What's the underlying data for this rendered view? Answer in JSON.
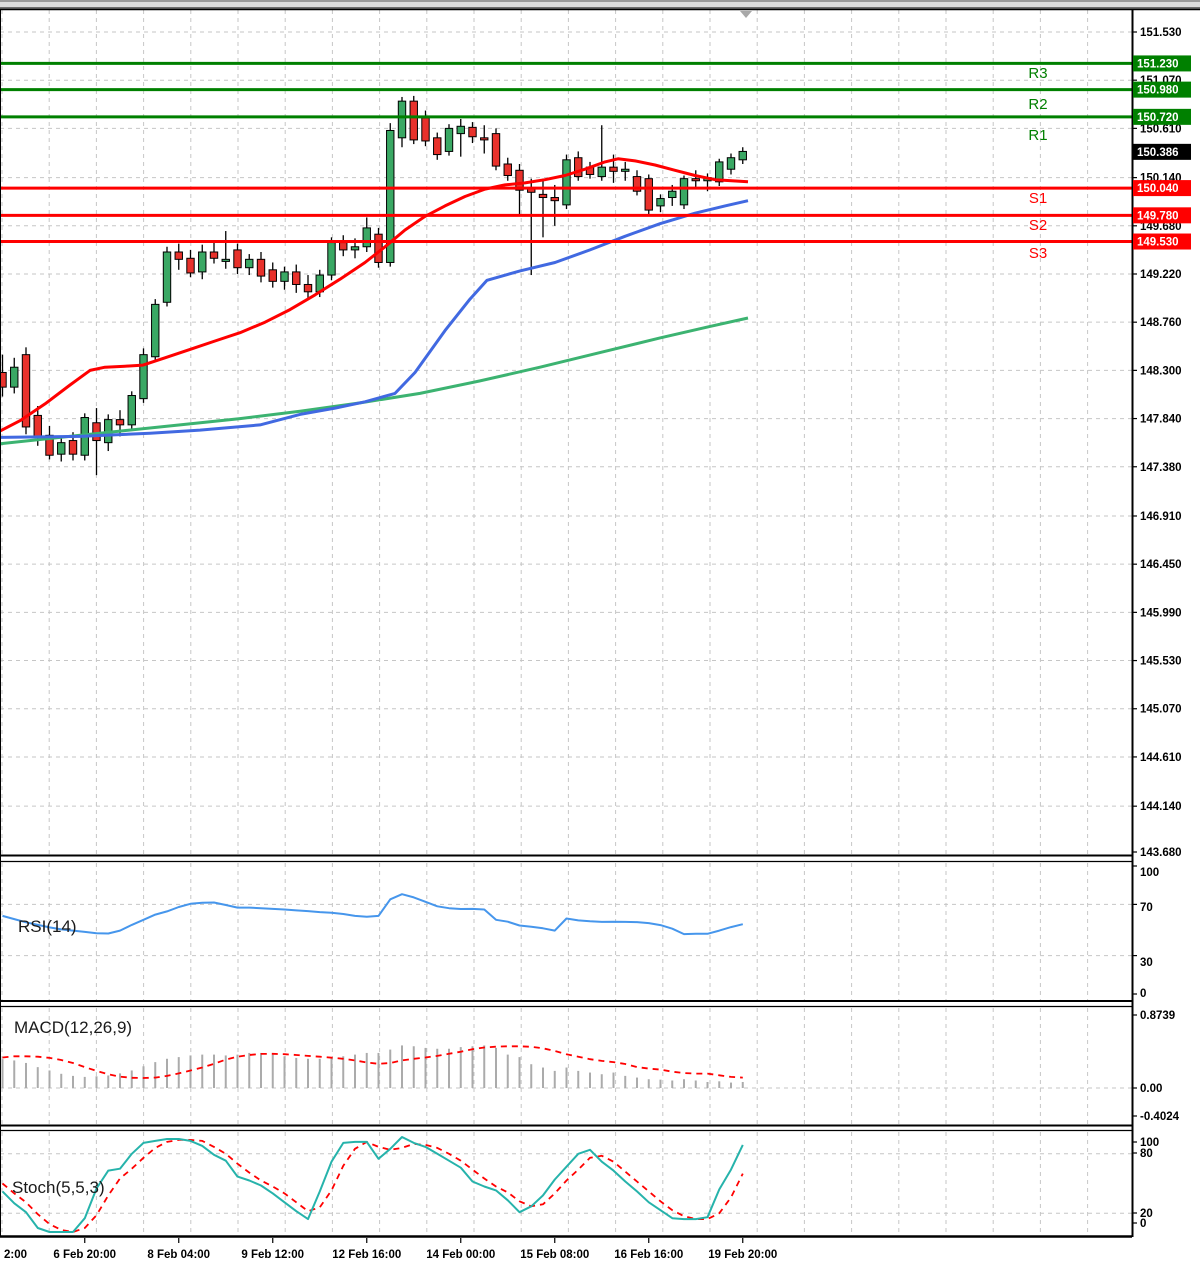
{
  "colors": {
    "grid": "#c6c6c6",
    "pivot_green": "#008000",
    "pivot_red": "#ff0000",
    "ma_red": "#ff0000",
    "ma_blue": "#4169e1",
    "ma_green": "#3cb371",
    "candle_up": "#3aa864",
    "candle_down": "#e8312b",
    "candle_outline": "#000000",
    "rsi_line": "#4696ec",
    "macd_hist": "#ababab",
    "macd_signal": "#ff0000",
    "stoch_k": "#26b3ab",
    "stoch_d": "#ff0000",
    "axis_text": "#000000",
    "current_price_bg": "#000000"
  },
  "chart_data": {
    "type": "candlestick",
    "main": {
      "price_axis_labels": [
        "151.530",
        "151.070",
        "150.610",
        "150.140",
        "149.680",
        "149.220",
        "148.760",
        "148.300",
        "147.840",
        "147.380",
        "146.910",
        "146.450",
        "145.990",
        "145.530",
        "145.070",
        "144.610",
        "144.140",
        "143.680"
      ],
      "price_axis_values": [
        151.53,
        151.07,
        150.61,
        150.14,
        149.68,
        149.22,
        148.76,
        148.3,
        147.84,
        147.38,
        146.91,
        146.45,
        145.99,
        145.53,
        145.07,
        144.61,
        144.14,
        143.68
      ],
      "pivots": [
        {
          "name": "R3",
          "price": 151.23,
          "label": "151.230",
          "kind": "green"
        },
        {
          "name": "R2",
          "price": 150.98,
          "label": "150.980",
          "kind": "green"
        },
        {
          "name": "R1",
          "price": 150.72,
          "label": "150.720",
          "kind": "green"
        },
        {
          "name": "S1",
          "price": 150.04,
          "label": "150.040",
          "kind": "red"
        },
        {
          "name": "S2",
          "price": 149.78,
          "label": "149.780",
          "kind": "red"
        },
        {
          "name": "S3",
          "price": 149.53,
          "label": "149.530",
          "kind": "red"
        }
      ],
      "current_price": 150.386,
      "current_price_label": "150.386",
      "candles": [
        [
          148.28,
          148.45,
          148.05,
          148.14
        ],
        [
          148.14,
          148.42,
          148.08,
          148.33
        ],
        [
          148.45,
          148.52,
          147.69,
          147.76
        ],
        [
          147.87,
          147.96,
          147.58,
          147.66
        ],
        [
          147.68,
          147.77,
          147.45,
          147.49
        ],
        [
          147.5,
          147.67,
          147.43,
          147.61
        ],
        [
          147.63,
          147.71,
          147.44,
          147.5
        ],
        [
          147.49,
          147.89,
          147.44,
          147.85
        ],
        [
          147.8,
          147.94,
          147.3,
          147.63
        ],
        [
          147.61,
          147.88,
          147.53,
          147.83
        ],
        [
          147.83,
          147.92,
          147.67,
          147.78
        ],
        [
          147.78,
          148.1,
          147.74,
          148.06
        ],
        [
          148.03,
          148.51,
          147.99,
          148.45
        ],
        [
          148.43,
          148.98,
          148.39,
          148.93
        ],
        [
          148.95,
          149.48,
          148.91,
          149.43
        ],
        [
          149.43,
          149.51,
          149.26,
          149.36
        ],
        [
          149.37,
          149.45,
          149.19,
          149.23
        ],
        [
          149.24,
          149.5,
          149.17,
          149.43
        ],
        [
          149.43,
          149.53,
          149.32,
          149.37
        ],
        [
          149.34,
          149.63,
          149.27,
          149.36
        ],
        [
          149.45,
          149.51,
          149.22,
          149.28
        ],
        [
          149.28,
          149.41,
          149.21,
          149.36
        ],
        [
          149.36,
          149.43,
          149.14,
          149.2
        ],
        [
          149.26,
          149.33,
          149.09,
          149.15
        ],
        [
          149.15,
          149.29,
          149.07,
          149.24
        ],
        [
          149.24,
          149.31,
          149.04,
          149.12
        ],
        [
          149.12,
          149.21,
          148.97,
          149.05
        ],
        [
          149.05,
          149.26,
          149.0,
          149.21
        ],
        [
          149.21,
          149.57,
          149.16,
          149.52
        ],
        [
          149.52,
          149.59,
          149.39,
          149.45
        ],
        [
          149.45,
          149.56,
          149.37,
          149.48
        ],
        [
          149.48,
          149.76,
          149.43,
          149.66
        ],
        [
          149.6,
          149.66,
          149.28,
          149.33
        ],
        [
          149.33,
          150.66,
          149.29,
          150.59
        ],
        [
          150.52,
          150.91,
          150.43,
          150.87
        ],
        [
          150.87,
          150.92,
          150.46,
          150.5
        ],
        [
          150.71,
          150.78,
          150.44,
          150.49
        ],
        [
          150.52,
          150.57,
          150.31,
          150.36
        ],
        [
          150.39,
          150.65,
          150.35,
          150.61
        ],
        [
          150.56,
          150.7,
          150.34,
          150.63
        ],
        [
          150.62,
          150.67,
          150.47,
          150.53
        ],
        [
          150.52,
          150.64,
          150.37,
          150.5
        ],
        [
          150.56,
          150.61,
          150.21,
          150.25
        ],
        [
          150.27,
          150.33,
          150.11,
          150.16
        ],
        [
          150.21,
          150.27,
          149.78,
          150.02
        ],
        [
          150.04,
          150.13,
          149.21,
          150.0
        ],
        [
          149.98,
          150.13,
          149.57,
          149.95
        ],
        [
          149.95,
          150.07,
          149.68,
          149.92
        ],
        [
          149.88,
          150.36,
          149.84,
          150.31
        ],
        [
          150.33,
          150.39,
          150.11,
          150.15
        ],
        [
          150.24,
          150.29,
          150.13,
          150.17
        ],
        [
          150.15,
          150.64,
          150.11,
          150.24
        ],
        [
          150.24,
          150.36,
          150.09,
          150.2
        ],
        [
          150.2,
          150.29,
          150.11,
          150.22
        ],
        [
          150.15,
          150.21,
          149.97,
          150.01
        ],
        [
          150.13,
          150.17,
          149.79,
          149.83
        ],
        [
          149.87,
          149.98,
          149.81,
          149.94
        ],
        [
          149.95,
          150.07,
          149.87,
          150.01
        ],
        [
          149.88,
          150.16,
          149.84,
          150.13
        ],
        [
          150.13,
          150.21,
          150.04,
          150.11
        ],
        [
          150.11,
          150.18,
          150.01,
          150.14
        ],
        [
          150.1,
          150.32,
          150.06,
          150.29
        ],
        [
          150.22,
          150.37,
          150.17,
          150.33
        ],
        [
          150.31,
          150.43,
          150.27,
          150.39
        ]
      ],
      "ma_fast_red": [
        [
          0,
          147.72
        ],
        [
          20,
          147.82
        ],
        [
          45,
          147.98
        ],
        [
          70,
          148.16
        ],
        [
          90,
          148.3
        ],
        [
          105,
          148.33
        ],
        [
          125,
          148.34
        ],
        [
          143,
          148.35
        ],
        [
          165,
          148.42
        ],
        [
          190,
          148.5
        ],
        [
          215,
          148.58
        ],
        [
          240,
          148.66
        ],
        [
          265,
          148.76
        ],
        [
          290,
          148.88
        ],
        [
          315,
          149.02
        ],
        [
          340,
          149.17
        ],
        [
          365,
          149.33
        ],
        [
          385,
          149.48
        ],
        [
          405,
          149.64
        ],
        [
          425,
          149.77
        ],
        [
          445,
          149.87
        ],
        [
          465,
          149.96
        ],
        [
          485,
          150.03
        ],
        [
          505,
          150.07
        ],
        [
          525,
          150.09
        ],
        [
          545,
          150.12
        ],
        [
          565,
          150.16
        ],
        [
          585,
          150.22
        ],
        [
          605,
          150.29
        ],
        [
          618,
          150.32
        ],
        [
          635,
          150.3
        ],
        [
          655,
          150.26
        ],
        [
          675,
          150.21
        ],
        [
          695,
          150.16
        ],
        [
          715,
          150.12
        ],
        [
          748,
          150.1
        ]
      ],
      "ma_mid_blue": [
        [
          0,
          147.66
        ],
        [
          80,
          147.67
        ],
        [
          150,
          147.7
        ],
        [
          200,
          147.73
        ],
        [
          260,
          147.78
        ],
        [
          300,
          147.88
        ],
        [
          335,
          147.94
        ],
        [
          365,
          148.0
        ],
        [
          395,
          148.08
        ],
        [
          415,
          148.28
        ],
        [
          445,
          148.68
        ],
        [
          470,
          148.98
        ],
        [
          487,
          149.16
        ],
        [
          520,
          149.25
        ],
        [
          555,
          149.33
        ],
        [
          590,
          149.45
        ],
        [
          625,
          149.58
        ],
        [
          660,
          149.7
        ],
        [
          695,
          149.8
        ],
        [
          725,
          149.87
        ],
        [
          748,
          149.92
        ]
      ],
      "ma_slow_green": [
        [
          0,
          147.6
        ],
        [
          60,
          147.66
        ],
        [
          120,
          147.72
        ],
        [
          180,
          147.78
        ],
        [
          240,
          147.84
        ],
        [
          300,
          147.91
        ],
        [
          360,
          147.99
        ],
        [
          420,
          148.08
        ],
        [
          480,
          148.2
        ],
        [
          540,
          148.33
        ],
        [
          600,
          148.47
        ],
        [
          660,
          148.61
        ],
        [
          710,
          148.72
        ],
        [
          748,
          148.8
        ]
      ]
    },
    "rsi": {
      "label": "RSI(14)",
      "scale_labels": [
        "100",
        "70",
        "30",
        "0"
      ],
      "scale_values": [
        100,
        70,
        30,
        0
      ],
      "grid": [
        70,
        30
      ],
      "values": [
        61,
        58.5,
        56,
        54,
        52,
        50.5,
        49.5,
        48.5,
        47.5,
        47.3,
        49.5,
        54,
        58,
        62,
        64.5,
        68,
        70.5,
        71.3,
        71.5,
        69.5,
        67.5,
        67.5,
        67,
        66.5,
        66,
        65.3,
        64.8,
        64,
        63.5,
        62.5,
        61,
        60.3,
        61,
        74,
        78,
        75.5,
        72,
        68.5,
        67,
        66.4,
        66.5,
        66,
        58,
        56.5,
        53.5,
        52.5,
        51.3,
        49.5,
        59,
        57.5,
        56.8,
        56.3,
        56.5,
        56.3,
        56.2,
        55.4,
        53.8,
        51,
        46.8,
        47,
        47,
        49.5,
        52.3,
        54.5
      ]
    },
    "macd": {
      "label": "MACD(12,26,9)",
      "scale_labels": [
        "0.8739",
        "0.00",
        "-0.4024"
      ],
      "hist": [
        0.345,
        0.33,
        0.3,
        0.25,
        0.21,
        0.17,
        0.145,
        0.133,
        0.14,
        0.15,
        0.175,
        0.21,
        0.26,
        0.31,
        0.35,
        0.37,
        0.39,
        0.4,
        0.4,
        0.39,
        0.4,
        0.42,
        0.42,
        0.4,
        0.38,
        0.36,
        0.35,
        0.35,
        0.36,
        0.38,
        0.4,
        0.42,
        0.42,
        0.46,
        0.51,
        0.5,
        0.48,
        0.47,
        0.47,
        0.49,
        0.5,
        0.51,
        0.48,
        0.4,
        0.37,
        0.285,
        0.245,
        0.205,
        0.245,
        0.205,
        0.185,
        0.165,
        0.185,
        0.145,
        0.125,
        0.105,
        0.1,
        0.09,
        0.105,
        0.09,
        0.072,
        0.08,
        0.065,
        0.072
      ],
      "signal": [
        0.365,
        0.38,
        0.38,
        0.375,
        0.36,
        0.335,
        0.3,
        0.25,
        0.205,
        0.165,
        0.135,
        0.122,
        0.12,
        0.125,
        0.145,
        0.175,
        0.21,
        0.245,
        0.29,
        0.34,
        0.375,
        0.395,
        0.408,
        0.41,
        0.405,
        0.395,
        0.385,
        0.375,
        0.363,
        0.35,
        0.33,
        0.305,
        0.29,
        0.3,
        0.33,
        0.35,
        0.365,
        0.385,
        0.41,
        0.435,
        0.465,
        0.485,
        0.495,
        0.5,
        0.5,
        0.493,
        0.475,
        0.443,
        0.405,
        0.375,
        0.345,
        0.325,
        0.31,
        0.288,
        0.25,
        0.232,
        0.22,
        0.195,
        0.178,
        0.172,
        0.172,
        0.152,
        0.133,
        0.124
      ]
    },
    "stoch": {
      "label": "Stoch(5,5,3)",
      "scale_labels": [
        "100",
        "80",
        "20",
        "0"
      ],
      "grid": [
        80,
        20
      ],
      "k": [
        42,
        30,
        21,
        5,
        1,
        1,
        1,
        15,
        45,
        63,
        65,
        80,
        91,
        93,
        95,
        95,
        93,
        88,
        79,
        73,
        57,
        53,
        48,
        40,
        31,
        22,
        14,
        42,
        72,
        91,
        92,
        92,
        75,
        85,
        97,
        91,
        87,
        80,
        73,
        66,
        52,
        47,
        43,
        33,
        21,
        27,
        38,
        54,
        67,
        80,
        84,
        72,
        63,
        52,
        42,
        31,
        23,
        15,
        14,
        14,
        16,
        44,
        64,
        89
      ],
      "d": [
        50,
        40,
        31,
        19,
        9,
        3,
        1,
        5,
        18,
        38,
        55,
        65,
        76,
        86,
        92,
        94,
        94,
        93,
        87,
        80,
        70,
        61,
        53,
        47,
        40,
        31,
        22,
        26,
        43,
        68,
        85,
        92,
        87,
        84,
        86,
        90,
        89,
        86,
        80,
        73,
        64,
        55,
        47,
        41,
        32,
        27,
        29,
        40,
        53,
        64,
        76,
        78,
        72,
        62,
        52,
        42,
        32,
        23,
        17,
        14,
        14,
        20,
        36,
        60
      ]
    },
    "time_axis": {
      "edge_label": "2:00",
      "labels": [
        "6 Feb 20:00",
        "8 Feb 04:00",
        "9 Feb 12:00",
        "12 Feb 16:00",
        "14 Feb 00:00",
        "15 Feb 08:00",
        "16 Feb 16:00",
        "19 Feb 20:00"
      ],
      "tick_candle_indices": [
        7,
        15,
        23,
        31,
        39,
        47,
        55,
        63
      ]
    }
  }
}
